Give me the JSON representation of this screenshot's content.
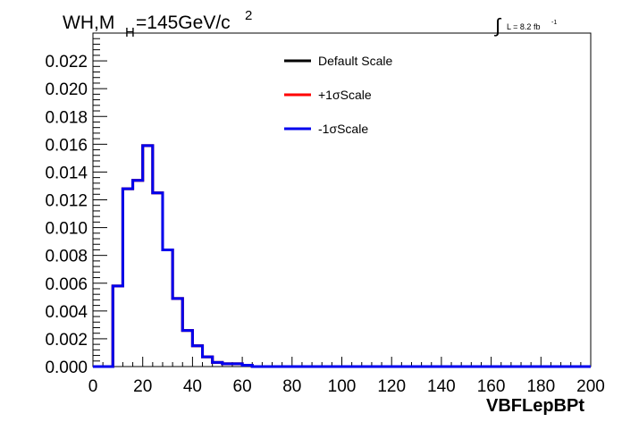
{
  "chart_data": {
    "type": "line",
    "style": "step-histogram",
    "title": {
      "prefix": "WH,M",
      "subscript": "H",
      "suffix": "=145GeV/c",
      "superscript": "2"
    },
    "lumi": {
      "symbol": "∫",
      "text": "L = 8.2 fb",
      "superscript": "-1"
    },
    "xlabel": "VBFLepBPt",
    "ylabel": "",
    "xlim": [
      0,
      200
    ],
    "ylim": [
      0,
      0.024
    ],
    "x_ticks": [
      "0",
      "20",
      "40",
      "60",
      "80",
      "100",
      "120",
      "140",
      "160",
      "180",
      "200"
    ],
    "y_ticks": [
      "0.000",
      "0.002",
      "0.004",
      "0.006",
      "0.008",
      "0.010",
      "0.012",
      "0.014",
      "0.016",
      "0.018",
      "0.020",
      "0.022"
    ],
    "grid": false,
    "legend_position": "top-center",
    "bin_edges": [
      0,
      4,
      8,
      12,
      16,
      20,
      24,
      28,
      32,
      36,
      40,
      44,
      48,
      52,
      56,
      60,
      64,
      68,
      72,
      76,
      80,
      84,
      88,
      92,
      96,
      100,
      104,
      108,
      112,
      116,
      120,
      124,
      128,
      132,
      136,
      140,
      144,
      148,
      152,
      156,
      160,
      164,
      168,
      172,
      176,
      180,
      184,
      188,
      192,
      196,
      200
    ],
    "series": [
      {
        "name": "Default Scale",
        "color": "#000000",
        "values": [
          0,
          0,
          0.0058,
          0.0128,
          0.0134,
          0.0159,
          0.0125,
          0.0084,
          0.0049,
          0.0026,
          0.0015,
          0.0007,
          0.0003,
          0.0002,
          0.0002,
          0.0001,
          0,
          0,
          0,
          0,
          0,
          0,
          0,
          0,
          0,
          0,
          0,
          0,
          0,
          0,
          0,
          0,
          0,
          0,
          0,
          0,
          0,
          0,
          0,
          0,
          0,
          0,
          0,
          0,
          0,
          0,
          0,
          0,
          0,
          0
        ]
      },
      {
        "name": "+1σScale",
        "color": "#ff0000",
        "values": [
          0,
          0,
          0.0058,
          0.0128,
          0.0134,
          0.0159,
          0.0125,
          0.0084,
          0.0049,
          0.0026,
          0.0015,
          0.0007,
          0.0003,
          0.0002,
          0.0002,
          0.0001,
          0,
          0,
          0,
          0,
          0,
          0,
          0,
          0,
          0,
          0,
          0,
          0,
          0,
          0,
          0,
          0,
          0,
          0,
          0,
          0,
          0,
          0,
          0,
          0,
          0,
          0,
          0,
          0,
          0,
          0,
          0,
          0,
          0,
          0
        ]
      },
      {
        "name": "-1σScale",
        "color": "#0000ee",
        "values": [
          0,
          0,
          0.0058,
          0.0128,
          0.0134,
          0.0159,
          0.0125,
          0.0084,
          0.0049,
          0.0026,
          0.0015,
          0.0007,
          0.0003,
          0.0002,
          0.0002,
          0.0001,
          0,
          0,
          0,
          0,
          0,
          0,
          0,
          0,
          0,
          0,
          0,
          0,
          0,
          0,
          0,
          0,
          0,
          0,
          0,
          0,
          0,
          0,
          0,
          0,
          0,
          0,
          0,
          0,
          0,
          0,
          0,
          0,
          0,
          0
        ]
      }
    ]
  }
}
